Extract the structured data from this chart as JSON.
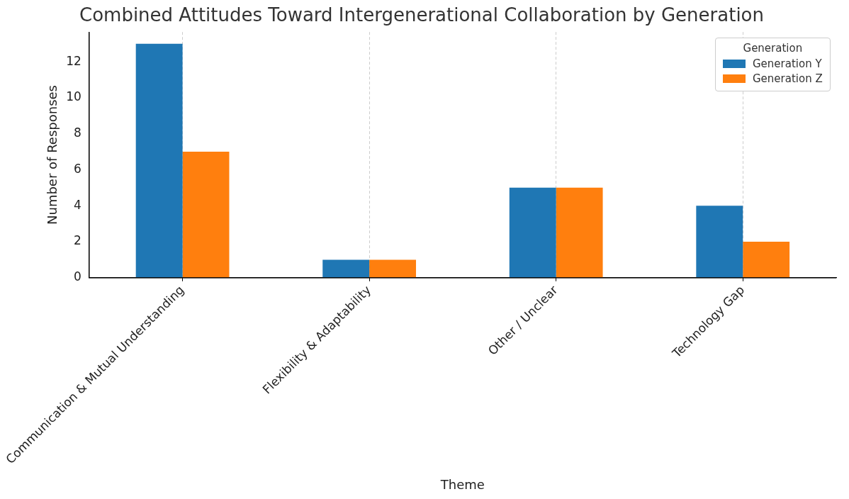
{
  "chart_data": {
    "type": "bar",
    "title": "Combined Attitudes Toward Intergenerational Collaboration by Generation",
    "xlabel": "Theme",
    "ylabel": "Number of Responses",
    "legend_title": "Generation",
    "categories": [
      "Communication & Mutual Understanding",
      "Flexibility & Adaptability",
      "Other / Unclear",
      "Technology Gap"
    ],
    "series": [
      {
        "name": "Generation Y",
        "color": "#1f77b4",
        "values": [
          13,
          1,
          5,
          4
        ]
      },
      {
        "name": "Generation Z",
        "color": "#ff7f0e",
        "values": [
          7,
          1,
          5,
          2
        ]
      }
    ],
    "ylim": [
      0,
      13.65
    ],
    "yticks": [
      0,
      2,
      4,
      6,
      8,
      10,
      12
    ],
    "grid": "x",
    "legend": "top right"
  }
}
